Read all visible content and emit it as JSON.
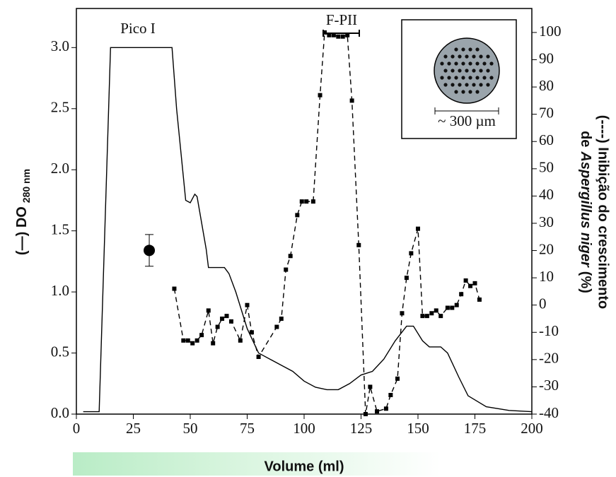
{
  "chart_data": {
    "type": "line",
    "x_label": "Volume (ml)",
    "y_label": "(—) DO",
    "y_label_sub": "280 nm",
    "y2_label_line1": "(----) Inibição do crescimento",
    "y2_label_line2": [
      "de",
      "Aspergillus niger",
      "(%)"
    ],
    "annotations": [
      "Pico I",
      "F-PII",
      "~ 300 µm"
    ],
    "xlim": [
      0,
      200
    ],
    "xticks": [
      0,
      25,
      50,
      75,
      100,
      125,
      150,
      175,
      200
    ],
    "ylim": [
      0,
      3.32
    ],
    "yticks": [
      {
        "value": 0,
        "label": "0.0"
      },
      0.5,
      {
        "value": 1,
        "label": "1.0"
      },
      1.5,
      {
        "value": 2,
        "label": "2.0"
      },
      2.5,
      {
        "value": 3,
        "label": "3.0"
      }
    ],
    "y2lim": [
      -40,
      108.8
    ],
    "y2ticks": [
      -40,
      -30,
      -20,
      -10,
      0,
      10,
      20,
      30,
      40,
      50,
      60,
      70,
      80,
      90,
      100
    ],
    "series": [
      {
        "color": "#000000",
        "style": "solid",
        "x": [
          3,
          10,
          15,
          42,
          44,
          48,
          50,
          52,
          53,
          57,
          58,
          65,
          67,
          70,
          75,
          80,
          85,
          90,
          95,
          100,
          105,
          110,
          115,
          120,
          125,
          130,
          135,
          140,
          145,
          148,
          152,
          155,
          160,
          163,
          168,
          172,
          180,
          190,
          200
        ],
        "values": [
          0.02,
          0.02,
          3.0,
          3.0,
          2.5,
          1.75,
          1.73,
          1.8,
          1.78,
          1.35,
          1.2,
          1.2,
          1.15,
          1.0,
          0.7,
          0.5,
          0.45,
          0.4,
          0.35,
          0.27,
          0.22,
          0.2,
          0.2,
          0.25,
          0.32,
          0.35,
          0.45,
          0.6,
          0.72,
          0.72,
          0.6,
          0.55,
          0.55,
          0.5,
          0.3,
          0.15,
          0.06,
          0.03,
          0.02
        ]
      },
      {
        "color": "#000000",
        "style": "dashed",
        "axis": "y2",
        "x": [
          43,
          47,
          49,
          51,
          53,
          55,
          58,
          60,
          62,
          64,
          66,
          68,
          72,
          75,
          77,
          80,
          88,
          90,
          92,
          94,
          97,
          99,
          101,
          104,
          107,
          109,
          111,
          113,
          115,
          117,
          119,
          121,
          124,
          127,
          129,
          132,
          136,
          138,
          141,
          143,
          145,
          147,
          150,
          152,
          154,
          156,
          158,
          160,
          163,
          165,
          167,
          169,
          171,
          173,
          175,
          177
        ],
        "values": [
          6,
          -13,
          -13,
          -14,
          -13,
          -11,
          -2,
          -14,
          -8,
          -5,
          -4,
          -6,
          -13,
          0,
          -10,
          -19,
          -8,
          -5,
          13,
          18,
          33,
          38,
          38,
          38,
          77,
          100,
          99,
          99,
          98.5,
          98.5,
          99,
          75,
          22,
          -40,
          -30,
          -39,
          -38,
          -33,
          -27,
          -3,
          10,
          19,
          28,
          -4,
          -4,
          -3,
          -2,
          -4,
          -1,
          -1,
          0,
          4,
          9,
          7,
          8,
          2
        ]
      },
      {
        "color": "#000000",
        "style": "point",
        "x": [
          32
        ],
        "values": [
          1.34
        ],
        "errors": [
          0.13
        ]
      }
    ]
  }
}
